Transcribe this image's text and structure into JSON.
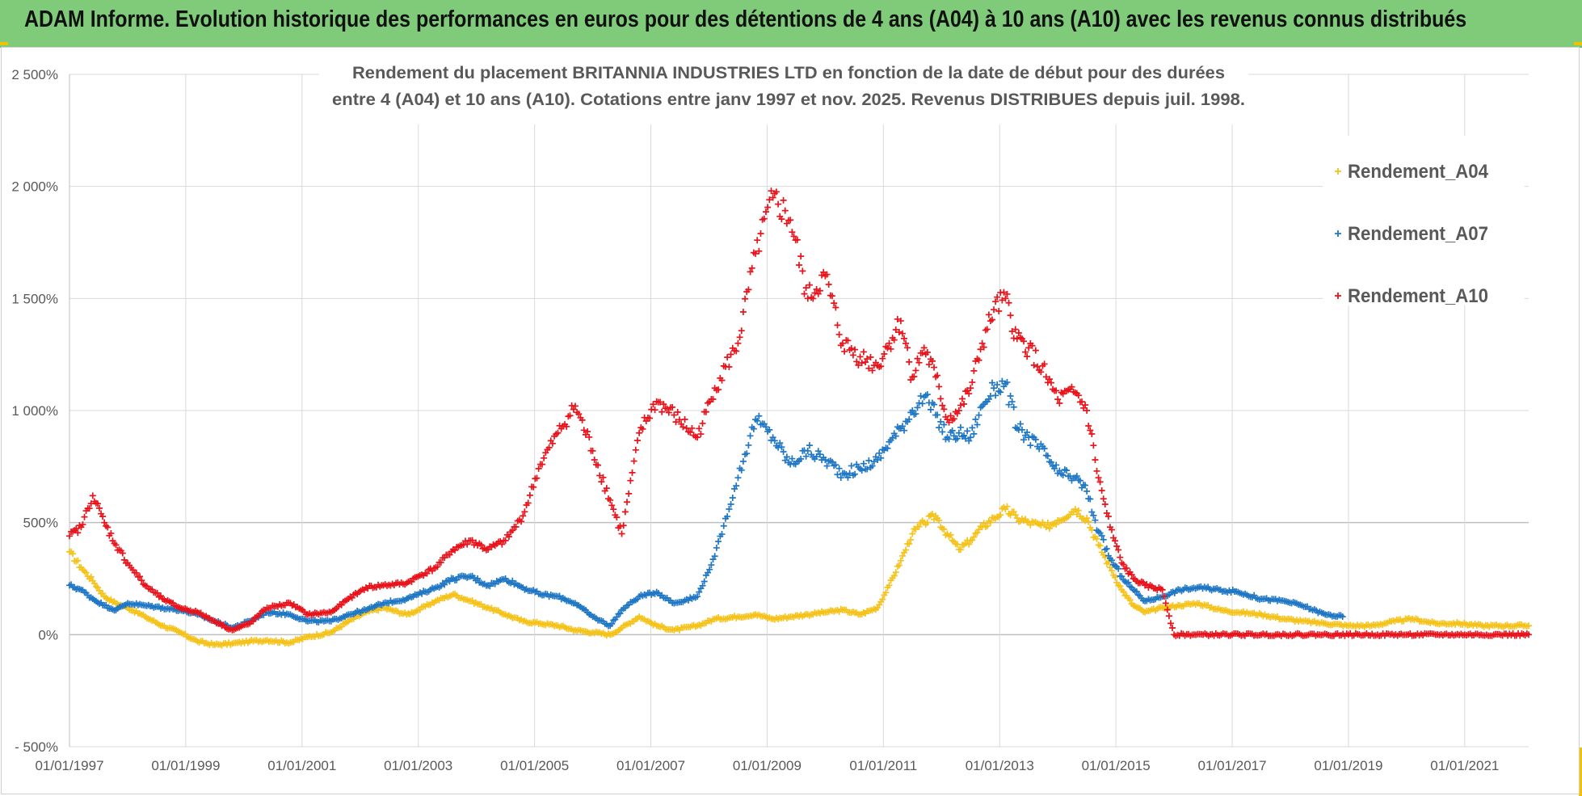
{
  "banner": {
    "title": "ADAM Informe. Evolution historique des performances en euros pour des détentions de 4 ans (A04) à 10 ans (A10) avec les revenus connus distribués"
  },
  "colors": {
    "banner_bg": "#7fcb7a",
    "A04": "#f5c21a",
    "A07": "#1f77c4",
    "A10": "#e8131b",
    "grid": "#d9d9d9",
    "axis_text": "#595959"
  },
  "chart_data": {
    "type": "scatter",
    "title_lines": [
      "Rendement du placement BRITANNIA  INDUSTRIES LTD en fonction de la date de début pour des durées",
      "entre 4 (A04) et 10 ans (A10).  Cotations entre janv 1997 et nov. 2025. Revenus DISTRIBUES depuis juil. 1998."
    ],
    "x_range": [
      1997.0,
      2022.1
    ],
    "x_ticks": [
      {
        "value": 1997,
        "label": "01/01/1997"
      },
      {
        "value": 1999,
        "label": "01/01/1999"
      },
      {
        "value": 2001,
        "label": "01/01/2001"
      },
      {
        "value": 2003,
        "label": "01/01/2003"
      },
      {
        "value": 2005,
        "label": "01/01/2005"
      },
      {
        "value": 2007,
        "label": "01/01/2007"
      },
      {
        "value": 2009,
        "label": "01/01/2009"
      },
      {
        "value": 2011,
        "label": "01/01/2011"
      },
      {
        "value": 2013,
        "label": "01/01/2013"
      },
      {
        "value": 2015,
        "label": "01/01/2015"
      },
      {
        "value": 2017,
        "label": "01/01/2017"
      },
      {
        "value": 2019,
        "label": "01/01/2019"
      },
      {
        "value": 2021,
        "label": "01/01/2021"
      }
    ],
    "y_range": [
      -500,
      2500
    ],
    "y_ticks": [
      {
        "value": 2500,
        "label": "2 500%"
      },
      {
        "value": 2000,
        "label": "2 000%"
      },
      {
        "value": 1500,
        "label": "1 500%"
      },
      {
        "value": 1000,
        "label": "1 000%"
      },
      {
        "value": 500,
        "label": "500%"
      },
      {
        "value": 0,
        "label": "0%"
      },
      {
        "value": -500,
        "label": "- 500%"
      }
    ],
    "legend_position": "top-right",
    "series": [
      {
        "name": "Rendement_A04",
        "color": "#f5c21a",
        "points": [
          [
            1997.0,
            370
          ],
          [
            1997.2,
            300
          ],
          [
            1997.4,
            240
          ],
          [
            1997.6,
            170
          ],
          [
            1997.8,
            140
          ],
          [
            1998.0,
            120
          ],
          [
            1998.3,
            80
          ],
          [
            1998.6,
            40
          ],
          [
            1998.9,
            10
          ],
          [
            1999.2,
            -30
          ],
          [
            1999.5,
            -45
          ],
          [
            1999.8,
            -40
          ],
          [
            2000.1,
            -30
          ],
          [
            2000.4,
            -25
          ],
          [
            2000.8,
            -35
          ],
          [
            2001.1,
            -10
          ],
          [
            2001.5,
            10
          ],
          [
            2001.8,
            60
          ],
          [
            2002.1,
            100
          ],
          [
            2002.4,
            120
          ],
          [
            2002.8,
            90
          ],
          [
            2003.0,
            110
          ],
          [
            2003.3,
            150
          ],
          [
            2003.6,
            180
          ],
          [
            2003.9,
            150
          ],
          [
            2004.2,
            120
          ],
          [
            2004.5,
            90
          ],
          [
            2004.8,
            60
          ],
          [
            2005.1,
            50
          ],
          [
            2005.4,
            40
          ],
          [
            2005.7,
            20
          ],
          [
            2006.0,
            10
          ],
          [
            2006.3,
            0
          ],
          [
            2006.5,
            30
          ],
          [
            2006.8,
            80
          ],
          [
            2007.1,
            40
          ],
          [
            2007.4,
            20
          ],
          [
            2007.8,
            40
          ],
          [
            2008.1,
            70
          ],
          [
            2008.5,
            80
          ],
          [
            2008.8,
            90
          ],
          [
            2009.1,
            70
          ],
          [
            2009.4,
            80
          ],
          [
            2009.7,
            90
          ],
          [
            2010.0,
            100
          ],
          [
            2010.3,
            110
          ],
          [
            2010.6,
            90
          ],
          [
            2010.9,
            120
          ],
          [
            2011.1,
            220
          ],
          [
            2011.3,
            330
          ],
          [
            2011.5,
            450
          ],
          [
            2011.7,
            500
          ],
          [
            2011.9,
            530
          ],
          [
            2012.1,
            450
          ],
          [
            2012.3,
            380
          ],
          [
            2012.5,
            420
          ],
          [
            2012.7,
            480
          ],
          [
            2012.9,
            520
          ],
          [
            2013.1,
            560
          ],
          [
            2013.3,
            520
          ],
          [
            2013.5,
            500
          ],
          [
            2013.8,
            480
          ],
          [
            2014.0,
            510
          ],
          [
            2014.3,
            560
          ],
          [
            2014.5,
            520
          ],
          [
            2014.7,
            400
          ],
          [
            2014.9,
            300
          ],
          [
            2015.1,
            200
          ],
          [
            2015.3,
            130
          ],
          [
            2015.5,
            100
          ],
          [
            2015.8,
            120
          ],
          [
            2016.1,
            130
          ],
          [
            2016.4,
            140
          ],
          [
            2016.8,
            110
          ],
          [
            2017.1,
            100
          ],
          [
            2017.5,
            90
          ],
          [
            2017.9,
            70
          ],
          [
            2018.2,
            60
          ],
          [
            2018.6,
            50
          ],
          [
            2019.0,
            40
          ],
          [
            2019.4,
            40
          ],
          [
            2019.8,
            60
          ],
          [
            2020.1,
            70
          ],
          [
            2020.5,
            50
          ],
          [
            2020.9,
            50
          ],
          [
            2021.3,
            40
          ],
          [
            2021.7,
            40
          ],
          [
            2022.1,
            40
          ]
        ]
      },
      {
        "name": "Rendement_A07",
        "color": "#1f77c4",
        "points": [
          [
            1997.0,
            220
          ],
          [
            1997.2,
            200
          ],
          [
            1997.4,
            160
          ],
          [
            1997.6,
            130
          ],
          [
            1997.8,
            110
          ],
          [
            1998.0,
            140
          ],
          [
            1998.3,
            130
          ],
          [
            1998.6,
            120
          ],
          [
            1998.9,
            110
          ],
          [
            1999.2,
            90
          ],
          [
            1999.5,
            60
          ],
          [
            1999.8,
            30
          ],
          [
            2000.1,
            60
          ],
          [
            2000.4,
            100
          ],
          [
            2000.8,
            90
          ],
          [
            2001.1,
            60
          ],
          [
            2001.5,
            60
          ],
          [
            2001.8,
            90
          ],
          [
            2002.1,
            110
          ],
          [
            2002.4,
            140
          ],
          [
            2002.8,
            160
          ],
          [
            2003.0,
            180
          ],
          [
            2003.3,
            210
          ],
          [
            2003.6,
            250
          ],
          [
            2003.9,
            260
          ],
          [
            2004.2,
            220
          ],
          [
            2004.5,
            250
          ],
          [
            2004.8,
            210
          ],
          [
            2005.1,
            180
          ],
          [
            2005.4,
            170
          ],
          [
            2005.7,
            140
          ],
          [
            2006.0,
            80
          ],
          [
            2006.3,
            40
          ],
          [
            2006.5,
            110
          ],
          [
            2006.8,
            170
          ],
          [
            2007.1,
            190
          ],
          [
            2007.4,
            140
          ],
          [
            2007.8,
            170
          ],
          [
            2008.1,
            350
          ],
          [
            2008.5,
            700
          ],
          [
            2008.8,
            960
          ],
          [
            2009.1,
            880
          ],
          [
            2009.4,
            760
          ],
          [
            2009.7,
            820
          ],
          [
            2010.0,
            780
          ],
          [
            2010.3,
            720
          ],
          [
            2010.6,
            740
          ],
          [
            2010.9,
            780
          ],
          [
            2011.1,
            860
          ],
          [
            2011.3,
            920
          ],
          [
            2011.5,
            1000
          ],
          [
            2011.7,
            1060
          ],
          [
            2011.9,
            980
          ],
          [
            2012.1,
            880
          ],
          [
            2012.3,
            900
          ],
          [
            2012.5,
            880
          ],
          [
            2012.7,
            1020
          ],
          [
            2012.9,
            1100
          ],
          [
            2013.1,
            1120
          ],
          [
            2013.3,
            920
          ],
          [
            2013.5,
            880
          ],
          [
            2013.8,
            800
          ],
          [
            2014.0,
            720
          ],
          [
            2014.3,
            700
          ],
          [
            2014.5,
            640
          ],
          [
            2014.7,
            460
          ],
          [
            2014.9,
            340
          ],
          [
            2015.1,
            260
          ],
          [
            2015.3,
            200
          ],
          [
            2015.5,
            150
          ],
          [
            2015.8,
            170
          ],
          [
            2016.1,
            200
          ],
          [
            2016.4,
            210
          ],
          [
            2016.8,
            200
          ],
          [
            2017.1,
            190
          ],
          [
            2017.5,
            160
          ],
          [
            2017.9,
            150
          ],
          [
            2018.2,
            130
          ],
          [
            2018.6,
            90
          ],
          [
            2018.9,
            80
          ]
        ]
      },
      {
        "name": "Rendement_A10",
        "color": "#e8131b",
        "points": [
          [
            1997.0,
            440
          ],
          [
            1997.2,
            480
          ],
          [
            1997.4,
            620
          ],
          [
            1997.6,
            500
          ],
          [
            1997.8,
            400
          ],
          [
            1998.0,
            320
          ],
          [
            1998.3,
            220
          ],
          [
            1998.6,
            160
          ],
          [
            1998.9,
            120
          ],
          [
            1999.2,
            100
          ],
          [
            1999.5,
            60
          ],
          [
            1999.8,
            20
          ],
          [
            2000.1,
            50
          ],
          [
            2000.4,
            120
          ],
          [
            2000.8,
            140
          ],
          [
            2001.1,
            90
          ],
          [
            2001.5,
            100
          ],
          [
            2001.8,
            160
          ],
          [
            2002.1,
            210
          ],
          [
            2002.4,
            220
          ],
          [
            2002.8,
            230
          ],
          [
            2003.0,
            260
          ],
          [
            2003.3,
            300
          ],
          [
            2003.6,
            380
          ],
          [
            2003.9,
            420
          ],
          [
            2004.2,
            380
          ],
          [
            2004.5,
            420
          ],
          [
            2004.8,
            530
          ],
          [
            2005.1,
            760
          ],
          [
            2005.4,
            900
          ],
          [
            2005.7,
            1020
          ],
          [
            2006.0,
            820
          ],
          [
            2006.3,
            600
          ],
          [
            2006.5,
            450
          ],
          [
            2006.8,
            900
          ],
          [
            2007.1,
            1040
          ],
          [
            2007.4,
            980
          ],
          [
            2007.8,
            880
          ],
          [
            2008.1,
            1100
          ],
          [
            2008.5,
            1300
          ],
          [
            2008.8,
            1700
          ],
          [
            2009.1,
            1950
          ],
          [
            2009.4,
            1850
          ],
          [
            2009.7,
            1500
          ],
          [
            2010.0,
            1600
          ],
          [
            2010.3,
            1300
          ],
          [
            2010.6,
            1240
          ],
          [
            2010.9,
            1200
          ],
          [
            2011.1,
            1300
          ],
          [
            2011.3,
            1400
          ],
          [
            2011.5,
            1150
          ],
          [
            2011.7,
            1280
          ],
          [
            2011.9,
            1150
          ],
          [
            2012.1,
            960
          ],
          [
            2012.3,
            1000
          ],
          [
            2012.5,
            1100
          ],
          [
            2012.7,
            1300
          ],
          [
            2012.9,
            1450
          ],
          [
            2013.1,
            1500
          ],
          [
            2013.3,
            1320
          ],
          [
            2013.5,
            1280
          ],
          [
            2013.8,
            1150
          ],
          [
            2014.0,
            1050
          ],
          [
            2014.3,
            1080
          ],
          [
            2014.5,
            1000
          ],
          [
            2014.7,
            700
          ],
          [
            2014.9,
            480
          ],
          [
            2015.1,
            320
          ],
          [
            2015.3,
            250
          ],
          [
            2015.5,
            220
          ],
          [
            2015.8,
            200
          ],
          [
            2016.0,
            0
          ],
          [
            2016.5,
            0
          ],
          [
            2017.0,
            0
          ],
          [
            2017.5,
            0
          ],
          [
            2018.0,
            0
          ],
          [
            2018.5,
            0
          ],
          [
            2019.0,
            0
          ],
          [
            2019.5,
            0
          ],
          [
            2020.0,
            0
          ],
          [
            2020.5,
            0
          ],
          [
            2021.0,
            0
          ],
          [
            2021.5,
            0
          ],
          [
            2022.1,
            0
          ]
        ]
      }
    ]
  }
}
